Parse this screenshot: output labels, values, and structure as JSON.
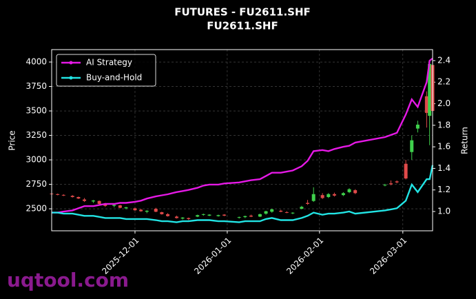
{
  "chart_data": {
    "type": "candlestick",
    "title": "FUTURES - FU2611.SHF",
    "subtitle": "FU2611.SHF",
    "ylabel": "Price",
    "y2label": "Return",
    "watermark": "uqtool.com",
    "up_color": "#3fd14c",
    "down_color": "#e04a4a",
    "x": [
      "2025-11-03",
      "2025-11-05",
      "2025-11-07",
      "2025-11-10",
      "2025-11-12",
      "2025-11-14",
      "2025-11-17",
      "2025-11-19",
      "2025-11-21",
      "2025-11-24",
      "2025-11-26",
      "2025-11-28",
      "2025-12-01",
      "2025-12-03",
      "2025-12-05",
      "2025-12-08",
      "2025-12-10",
      "2025-12-12",
      "2025-12-15",
      "2025-12-17",
      "2025-12-19",
      "2025-12-22",
      "2025-12-24",
      "2025-12-26",
      "2025-12-29",
      "2025-12-31",
      "2026-01-05",
      "2026-01-07",
      "2026-01-09",
      "2026-01-12",
      "2026-01-14",
      "2026-01-16",
      "2026-01-19",
      "2026-01-21",
      "2026-01-23",
      "2026-01-26",
      "2026-01-28",
      "2026-01-30",
      "2026-02-02",
      "2026-02-04",
      "2026-02-06",
      "2026-02-09",
      "2026-02-11",
      "2026-02-13",
      "2026-02-23",
      "2026-02-25",
      "2026-02-27",
      "2026-03-02",
      "2026-03-04",
      "2026-03-06",
      "2026-03-09",
      "2026-03-10",
      "2026-03-11"
    ],
    "open": [
      2655,
      2650,
      2642,
      2632,
      2620,
      2595,
      2575,
      2580,
      2550,
      2530,
      2535,
      2505,
      2505,
      2490,
      2470,
      2500,
      2465,
      2445,
      2420,
      2400,
      2405,
      2420,
      2440,
      2430,
      2425,
      2440,
      2410,
      2415,
      2430,
      2420,
      2450,
      2470,
      2480,
      2465,
      2455,
      2500,
      2560,
      2580,
      2640,
      2620,
      2650,
      2640,
      2670,
      2690,
      2740,
      2760,
      2780,
      2960,
      3080,
      3320,
      3650,
      3450,
      3970
    ],
    "high": [
      2665,
      2655,
      2648,
      2640,
      2625,
      2610,
      2590,
      2585,
      2560,
      2545,
      2540,
      2520,
      2510,
      2500,
      2485,
      2510,
      2470,
      2455,
      2430,
      2415,
      2410,
      2440,
      2450,
      2445,
      2440,
      2445,
      2420,
      2430,
      2440,
      2450,
      2480,
      2500,
      2490,
      2475,
      2465,
      2530,
      2590,
      2720,
      2660,
      2660,
      2665,
      2670,
      2710,
      2700,
      2755,
      2790,
      2790,
      3000,
      3250,
      3400,
      3700,
      3990,
      4010
    ],
    "low": [
      2645,
      2638,
      2630,
      2615,
      2600,
      2570,
      2560,
      2545,
      2520,
      2515,
      2505,
      2495,
      2480,
      2470,
      2455,
      2465,
      2440,
      2420,
      2400,
      2390,
      2385,
      2415,
      2430,
      2425,
      2420,
      2425,
      2400,
      2405,
      2415,
      2415,
      2440,
      2460,
      2465,
      2455,
      2445,
      2495,
      2540,
      2570,
      2600,
      2610,
      2625,
      2630,
      2660,
      2650,
      2730,
      2740,
      2760,
      2800,
      3000,
      3280,
      3330,
      3150,
      3480
    ],
    "close": [
      2650,
      2642,
      2635,
      2620,
      2605,
      2580,
      2585,
      2550,
      2530,
      2540,
      2510,
      2515,
      2485,
      2475,
      2480,
      2470,
      2445,
      2425,
      2405,
      2410,
      2395,
      2435,
      2445,
      2440,
      2435,
      2430,
      2415,
      2425,
      2420,
      2445,
      2475,
      2495,
      2470,
      2460,
      2460,
      2520,
      2550,
      2650,
      2610,
      2650,
      2635,
      2660,
      2700,
      2660,
      2745,
      2750,
      2770,
      2810,
      3200,
      3360,
      3480,
      3980,
      3500
    ],
    "series": [
      {
        "name": "AI Strategy",
        "color": "#e619e6",
        "axis": "y2",
        "values": [
          0.99,
          0.99,
          1.0,
          1.01,
          1.03,
          1.05,
          1.05,
          1.06,
          1.07,
          1.07,
          1.08,
          1.08,
          1.09,
          1.1,
          1.12,
          1.14,
          1.15,
          1.16,
          1.18,
          1.19,
          1.2,
          1.22,
          1.24,
          1.25,
          1.25,
          1.26,
          1.27,
          1.28,
          1.29,
          1.3,
          1.33,
          1.36,
          1.36,
          1.37,
          1.38,
          1.42,
          1.47,
          1.56,
          1.57,
          1.56,
          1.58,
          1.6,
          1.61,
          1.64,
          1.69,
          1.71,
          1.73,
          1.9,
          2.04,
          1.97,
          2.2,
          2.4,
          2.42
        ]
      },
      {
        "name": "Buy-and-Hold",
        "color": "#22e5e5",
        "axis": "y2",
        "values": [
          0.99,
          0.99,
          0.98,
          0.98,
          0.97,
          0.96,
          0.96,
          0.95,
          0.94,
          0.94,
          0.94,
          0.93,
          0.93,
          0.93,
          0.93,
          0.92,
          0.91,
          0.91,
          0.9,
          0.91,
          0.91,
          0.92,
          0.92,
          0.92,
          0.91,
          0.91,
          0.9,
          0.91,
          0.91,
          0.91,
          0.93,
          0.94,
          0.92,
          0.92,
          0.92,
          0.94,
          0.96,
          0.99,
          0.97,
          0.98,
          0.98,
          0.99,
          1.0,
          0.98,
          1.01,
          1.02,
          1.03,
          1.1,
          1.25,
          1.18,
          1.3,
          1.3,
          1.43
        ]
      }
    ],
    "xlim": [
      "2025-11-03",
      "2026-03-11"
    ],
    "xticks": [
      "2025-12-01",
      "2026-01-01",
      "2026-02-01",
      "2026-03-01"
    ],
    "ylim": [
      2275,
      4127
    ],
    "yticks": [
      2500,
      2750,
      3000,
      3250,
      3500,
      3750,
      4000
    ],
    "y2lim": [
      0.821,
      2.502
    ],
    "y2ticks": [
      {
        "value": 1,
        "label": "1.0"
      },
      1.2,
      1.4,
      1.6,
      1.8,
      {
        "value": 2,
        "label": "2.0"
      },
      2.2,
      2.4
    ],
    "grid": true,
    "legend": "upper left"
  }
}
